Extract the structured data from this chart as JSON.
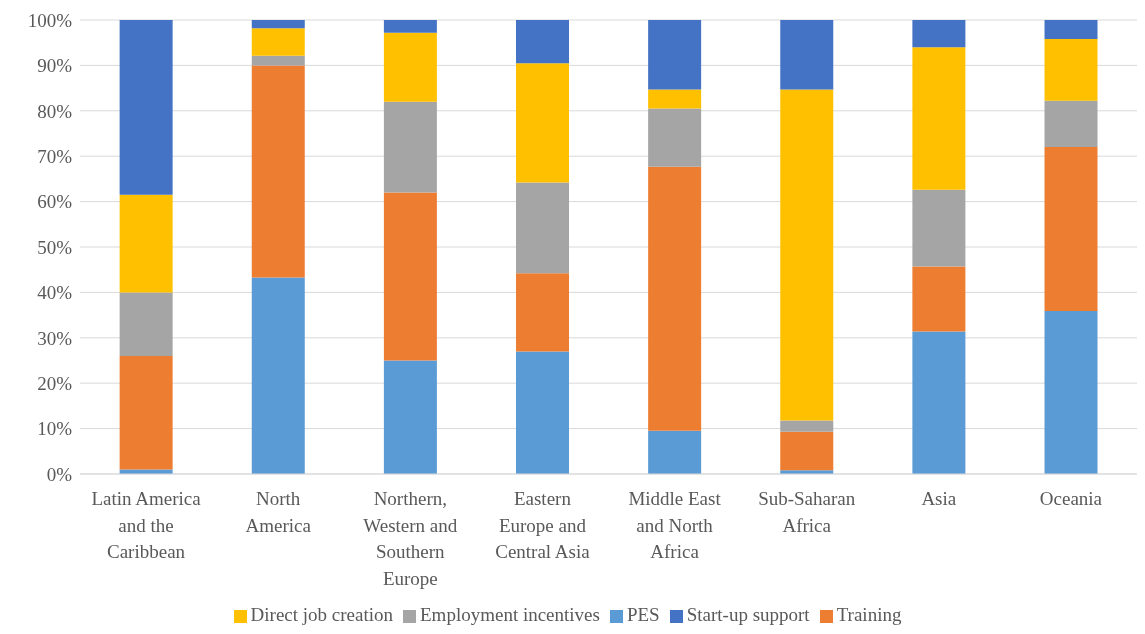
{
  "chart_data": {
    "type": "bar",
    "stacked": true,
    "categories": [
      "Latin America\nand the\nCaribbean",
      "North\nAmerica",
      "Northern,\nWestern and\nSouthern\nEurope",
      "Eastern\nEurope and\nCentral Asia",
      "Middle East\nand North\nAfrica",
      "Sub-Saharan\nAfrica",
      "Asia",
      "Oceania"
    ],
    "series": [
      {
        "name": "PES",
        "color": "#5b9bd5",
        "values": [
          1,
          43.3,
          25,
          27,
          9.5,
          0.8,
          31.4,
          35.9
        ]
      },
      {
        "name": "Training",
        "color": "#ed7d31",
        "values": [
          25,
          46.7,
          37,
          17.2,
          58.2,
          8.5,
          14.3,
          36.1
        ]
      },
      {
        "name": "Employment incentives",
        "color": "#a5a5a5",
        "values": [
          14,
          2.1,
          20,
          20,
          12.8,
          2.5,
          16.9,
          10.2
        ]
      },
      {
        "name": "Direct job creation",
        "color": "#ffc000",
        "values": [
          21.5,
          6.1,
          15.2,
          26.3,
          4.2,
          72.9,
          31.4,
          13.6
        ]
      },
      {
        "name": "Start-up support",
        "color": "#4472c4",
        "values": [
          38.5,
          1.8,
          2.8,
          9.5,
          15.3,
          15.3,
          6,
          4.2
        ]
      }
    ],
    "ylim": [
      0,
      100
    ],
    "yticks": [
      {
        "value": 0,
        "label": "0%"
      },
      {
        "value": 10,
        "label": "10%"
      },
      {
        "value": 20,
        "label": "20%"
      },
      {
        "value": 30,
        "label": "30%"
      },
      {
        "value": 40,
        "label": "40%"
      },
      {
        "value": 50,
        "label": "50%"
      },
      {
        "value": 60,
        "label": "60%"
      },
      {
        "value": 70,
        "label": "70%"
      },
      {
        "value": 80,
        "label": "80%"
      },
      {
        "value": 90,
        "label": "90%"
      },
      {
        "value": 100,
        "label": "100%"
      }
    ],
    "grid": "y",
    "legend": "bottom"
  }
}
